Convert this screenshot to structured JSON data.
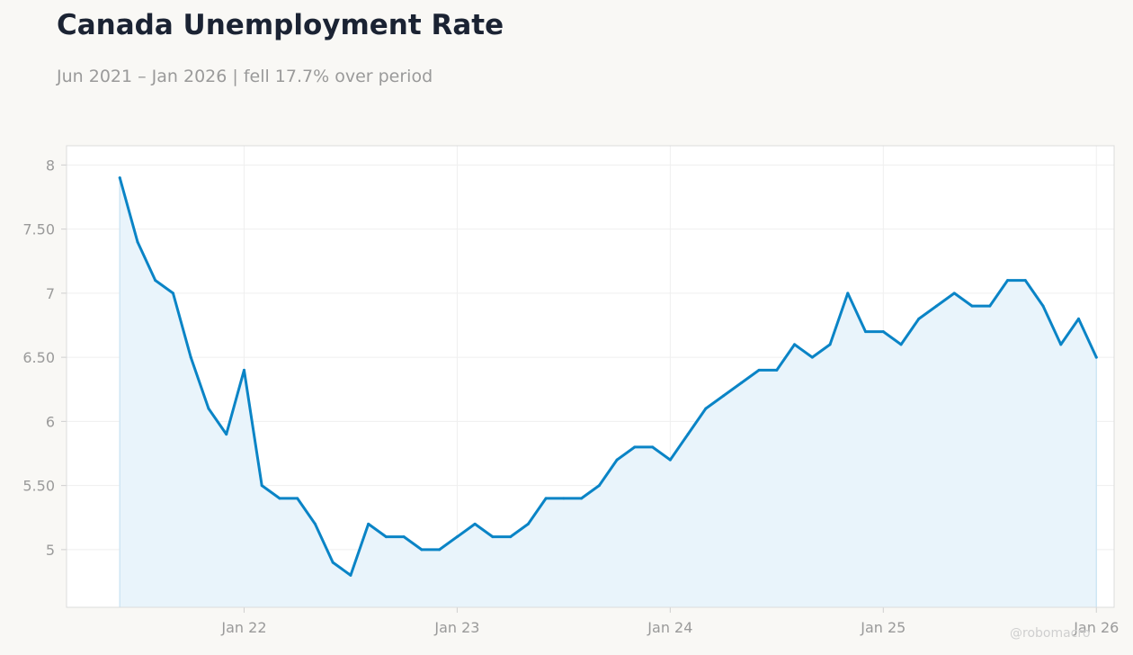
{
  "title": "Canada Unemployment Rate",
  "subtitle": "Jun 2021 – Jan 2026 | fell 17.7% over period",
  "watermark": "@robomacro",
  "colors": {
    "line": "#0a84c6",
    "fill": "#e9f4fb",
    "grid": "#efefef",
    "frame": "#dcdcdc",
    "plot_bg": "#ffffff"
  },
  "chart_data": {
    "type": "line",
    "title": "Canada Unemployment Rate",
    "subtitle": "Jun 2021 – Jan 2026 | fell 17.7% over period",
    "xlabel": "",
    "ylabel": "",
    "grid": true,
    "area_fill": true,
    "x_start": "2021-06",
    "x_end": "2026-01",
    "xlim": [
      "2021-03",
      "2026-02"
    ],
    "ylim": [
      4.55,
      8.15
    ],
    "y_ticks": [
      5,
      5.5,
      6,
      6.5,
      7,
      7.5,
      8
    ],
    "y_tick_labels": [
      "5",
      "5.50",
      "6",
      "6.50",
      "7",
      "7.50",
      "8"
    ],
    "x_ticks": [
      "2022-01",
      "2023-01",
      "2024-01",
      "2025-01",
      "2026-01"
    ],
    "x_tick_labels": [
      "Jan 22",
      "Jan 23",
      "Jan 24",
      "Jan 25",
      "Jan 26"
    ],
    "series": [
      {
        "x": [
          "2021-06",
          "2021-07",
          "2021-08",
          "2021-09",
          "2021-10",
          "2021-11",
          "2021-12",
          "2022-01",
          "2022-02",
          "2022-03",
          "2022-04",
          "2022-05",
          "2022-06",
          "2022-07",
          "2022-08",
          "2022-09",
          "2022-10",
          "2022-11",
          "2022-12",
          "2023-01",
          "2023-02",
          "2023-03",
          "2023-04",
          "2023-05",
          "2023-06",
          "2023-07",
          "2023-08",
          "2023-09",
          "2023-10",
          "2023-11",
          "2023-12",
          "2024-01",
          "2024-02",
          "2024-03",
          "2024-04",
          "2024-05",
          "2024-06",
          "2024-07",
          "2024-08",
          "2024-09",
          "2024-10",
          "2024-11",
          "2024-12",
          "2025-01",
          "2025-02",
          "2025-03",
          "2025-04",
          "2025-05",
          "2025-06",
          "2025-07",
          "2025-08",
          "2025-09",
          "2025-10",
          "2025-11",
          "2025-12",
          "2026-01"
        ],
        "values": [
          7.9,
          7.4,
          7.1,
          7.0,
          6.5,
          6.1,
          5.9,
          6.4,
          5.5,
          5.4,
          5.4,
          5.2,
          4.9,
          4.8,
          5.2,
          5.1,
          5.1,
          5.0,
          5.0,
          5.1,
          5.2,
          5.1,
          5.1,
          5.2,
          5.4,
          5.4,
          5.4,
          5.5,
          5.7,
          5.8,
          5.8,
          5.7,
          5.9,
          6.1,
          6.2,
          6.3,
          6.4,
          6.4,
          6.6,
          6.5,
          6.6,
          7.0,
          6.7,
          6.7,
          6.6,
          6.8,
          6.9,
          7.0,
          6.9,
          6.9,
          7.1,
          7.1,
          6.9,
          6.6,
          6.8,
          6.5
        ]
      }
    ]
  }
}
